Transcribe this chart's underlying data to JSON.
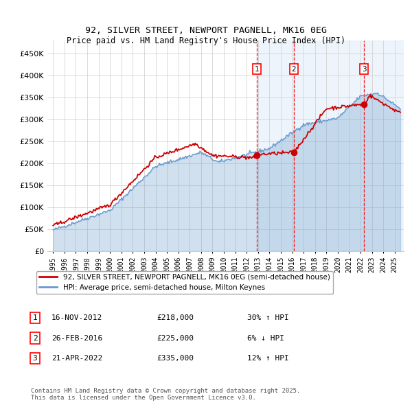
{
  "title": "92, SILVER STREET, NEWPORT PAGNELL, MK16 0EG",
  "subtitle": "Price paid vs. HM Land Registry's House Price Index (HPI)",
  "legend_line1": "92, SILVER STREET, NEWPORT PAGNELL, MK16 0EG (semi-detached house)",
  "legend_line2": "HPI: Average price, semi-detached house, Milton Keynes",
  "transactions": [
    {
      "num": 1,
      "date": "16-NOV-2012",
      "price": 218000,
      "hpi_pct": "30% ↑ HPI",
      "year_x": 2012.88
    },
    {
      "num": 2,
      "date": "26-FEB-2016",
      "price": 225000,
      "hpi_pct": "6% ↓ HPI",
      "year_x": 2016.15
    },
    {
      "num": 3,
      "date": "21-APR-2022",
      "price": 335000,
      "hpi_pct": "12% ↑ HPI",
      "year_x": 2022.31
    }
  ],
  "footnote": "Contains HM Land Registry data © Crown copyright and database right 2025.\nThis data is licensed under the Open Government Licence v3.0.",
  "red_color": "#cc0000",
  "blue_color": "#6699cc",
  "shade_color": "#cce0f5",
  "background_color": "#ffffff",
  "grid_color": "#cccccc",
  "ylim": [
    0,
    480000
  ],
  "yticks": [
    0,
    50000,
    100000,
    150000,
    200000,
    250000,
    300000,
    350000,
    400000,
    450000
  ],
  "xlim": [
    1994.5,
    2025.8
  ]
}
